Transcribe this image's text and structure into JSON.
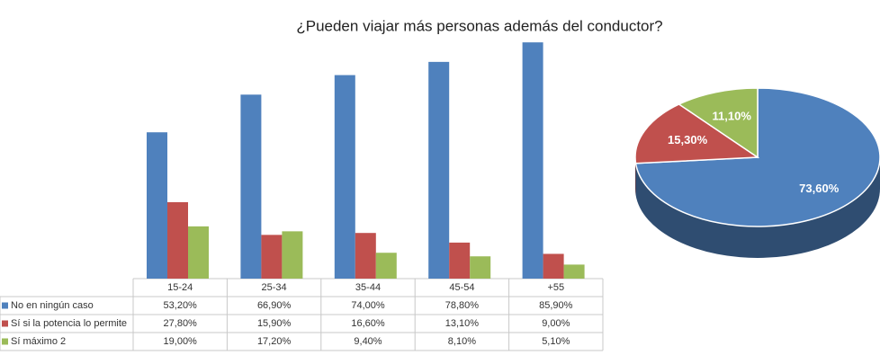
{
  "chart_data": [
    {
      "type": "bar",
      "title": "¿Pueden viajar más personas además del conductor?",
      "categories": [
        "15-24",
        "25-34",
        "35-44",
        "45-54",
        "+55"
      ],
      "series": [
        {
          "name": "No en ningún caso",
          "color": "#4f81bd",
          "values": [
            53.2,
            66.9,
            74.0,
            78.8,
            85.9
          ],
          "value_labels": [
            "53,20%",
            "66,90%",
            "74,00%",
            "78,80%",
            "85,90%"
          ]
        },
        {
          "name": "Sí si la potencia lo permite",
          "color": "#c0504d",
          "values": [
            27.8,
            15.9,
            16.6,
            13.1,
            9.0
          ],
          "value_labels": [
            "27,80%",
            "15,90%",
            "16,60%",
            "13,10%",
            "9,00%"
          ]
        },
        {
          "name": "Sí máximo 2",
          "color": "#9bbb59",
          "values": [
            19.0,
            17.2,
            9.4,
            8.1,
            5.1
          ],
          "value_labels": [
            "19,00%",
            "17,20%",
            "9,40%",
            "8,10%",
            "5,10%"
          ]
        }
      ]
    },
    {
      "type": "pie",
      "values": [
        73.6,
        15.3,
        11.1
      ],
      "value_labels": [
        "73,60%",
        "15,30%",
        "11,10%"
      ],
      "colors": [
        "#4f81bd",
        "#c0504d",
        "#9bbb59"
      ]
    }
  ]
}
